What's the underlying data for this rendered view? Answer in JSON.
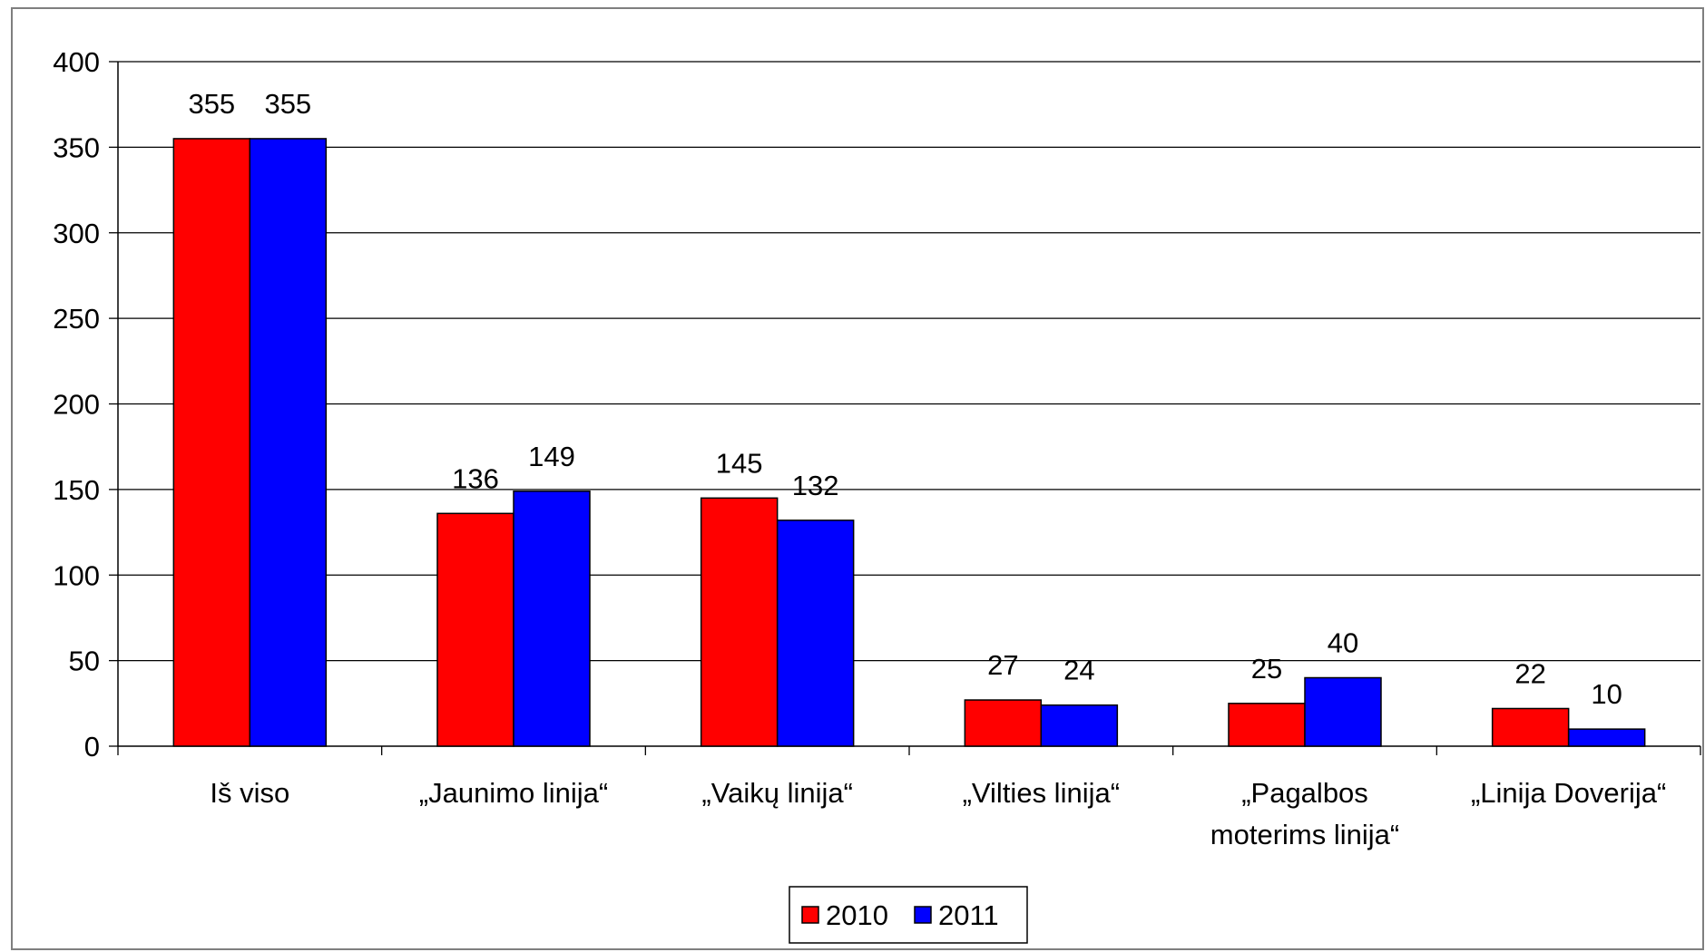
{
  "chart_data": {
    "type": "bar",
    "categories": [
      [
        "Iš viso"
      ],
      [
        "„Jaunimo linija“"
      ],
      [
        "„Vaikų linija“"
      ],
      [
        "„Vilties linija“"
      ],
      [
        "„Pagalbos",
        "moterims linija“"
      ],
      [
        "„Linija Doverija“"
      ]
    ],
    "series": [
      {
        "name": "2010",
        "color": "#ff0000",
        "values": [
          355,
          136,
          145,
          27,
          25,
          22
        ]
      },
      {
        "name": "2011",
        "color": "#0000ff",
        "values": [
          355,
          149,
          132,
          24,
          40,
          10
        ]
      }
    ],
    "ylim": [
      0,
      400
    ],
    "yticks": [
      0,
      50,
      100,
      150,
      200,
      250,
      300,
      350,
      400
    ],
    "grid": true,
    "legend": "bottom-center",
    "title": "",
    "xlabel": "",
    "ylabel": ""
  }
}
